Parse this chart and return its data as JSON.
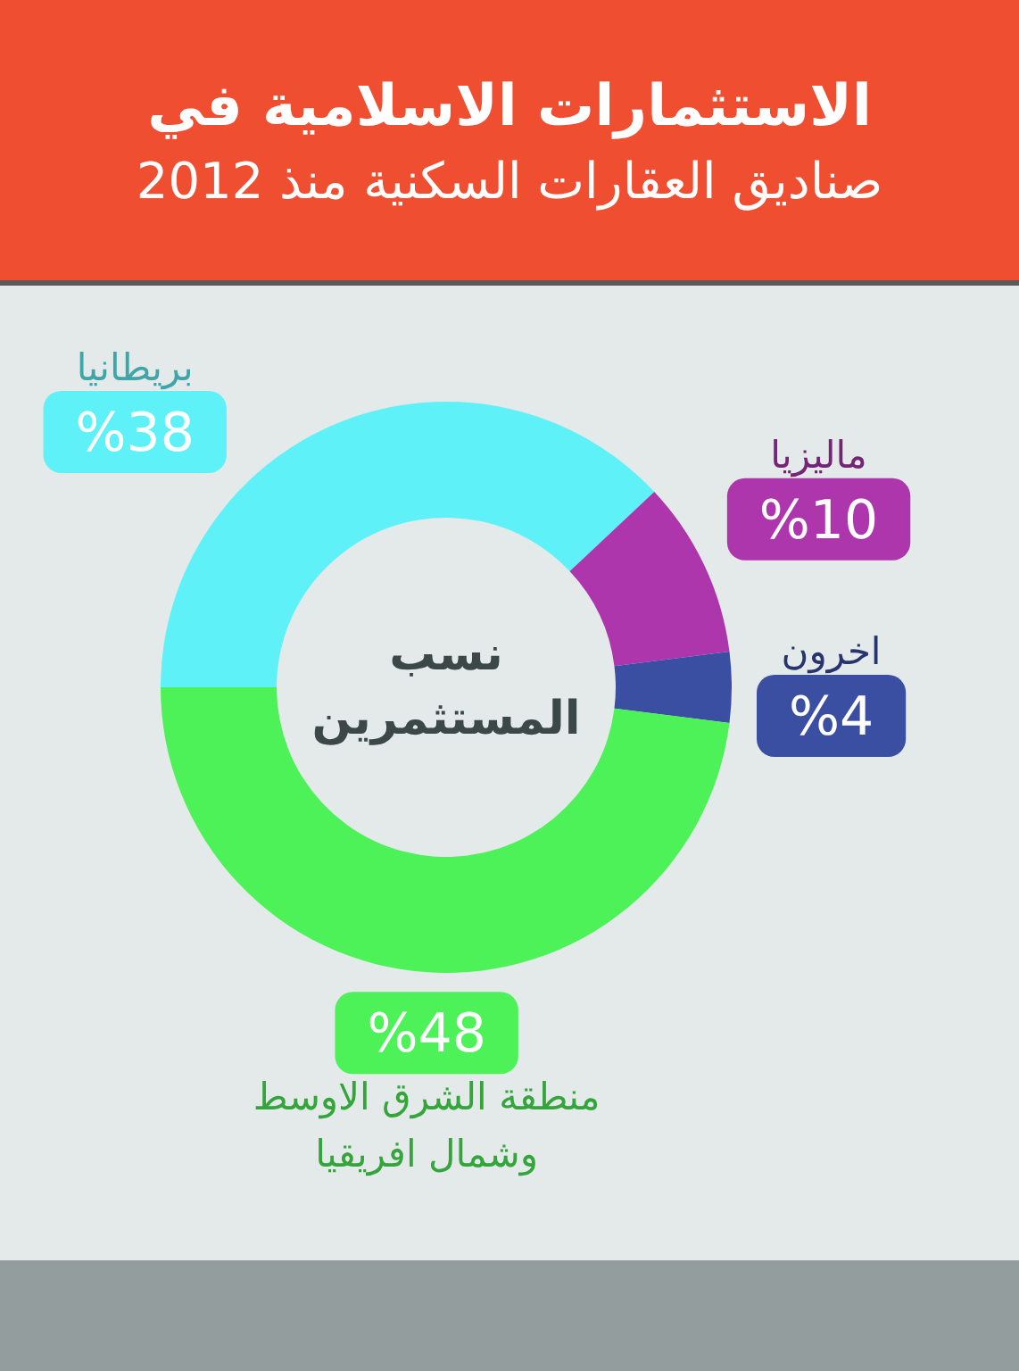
{
  "chart_data": {
    "type": "donut",
    "title": "الاستثمارات الاسلامية في",
    "subtitle": "صناديق العقارات السكنية منذ 2012",
    "categories": [
      "بريطانيا",
      "ماليزيا",
      "اخرون",
      "منطقة الشرق الاوسط وشمال افريقيا"
    ],
    "values": [
      38,
      10,
      4,
      48
    ],
    "colors": [
      "#5ef2f8",
      "#ad36ad",
      "#3a4ea2",
      "#4cf257"
    ],
    "value_labels": [
      "%38",
      "%10",
      "%4",
      "%48"
    ],
    "annotations": [
      "نسب المستثمرين"
    ]
  }
}
